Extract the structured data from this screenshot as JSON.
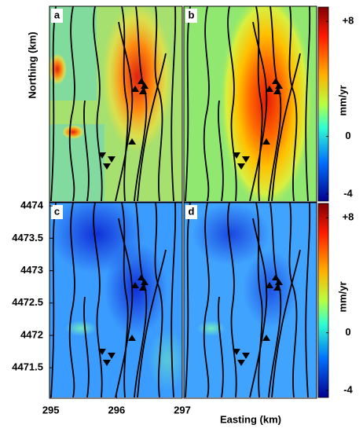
{
  "chart_data": [
    {
      "type": "heatmap",
      "label": "a",
      "ylabel": "Northing (km)"
    },
    {
      "type": "heatmap",
      "label": "b",
      "colorbar": {
        "label": "mm/yr",
        "lim": [
          -4.5,
          9
        ],
        "ticks": [
          {
            "value": 8,
            "label": "+8"
          },
          0,
          -4
        ]
      }
    },
    {
      "type": "heatmap",
      "label": "c",
      "xlim": [
        294.98,
        297.0
      ],
      "xticks": [
        295,
        296,
        297
      ],
      "ylim": [
        4471.03,
        4474.05
      ],
      "yticks": [
        4474,
        4473.5,
        4473,
        4472.5,
        4472,
        4471.5
      ]
    },
    {
      "type": "heatmap",
      "label": "d",
      "xlabel": "Easting (km)",
      "colorbar": {
        "label": "mm/yr",
        "lim": [
          -4.5,
          9
        ],
        "ticks": [
          {
            "value": 8,
            "label": "+8"
          },
          0,
          -4
        ]
      }
    }
  ]
}
